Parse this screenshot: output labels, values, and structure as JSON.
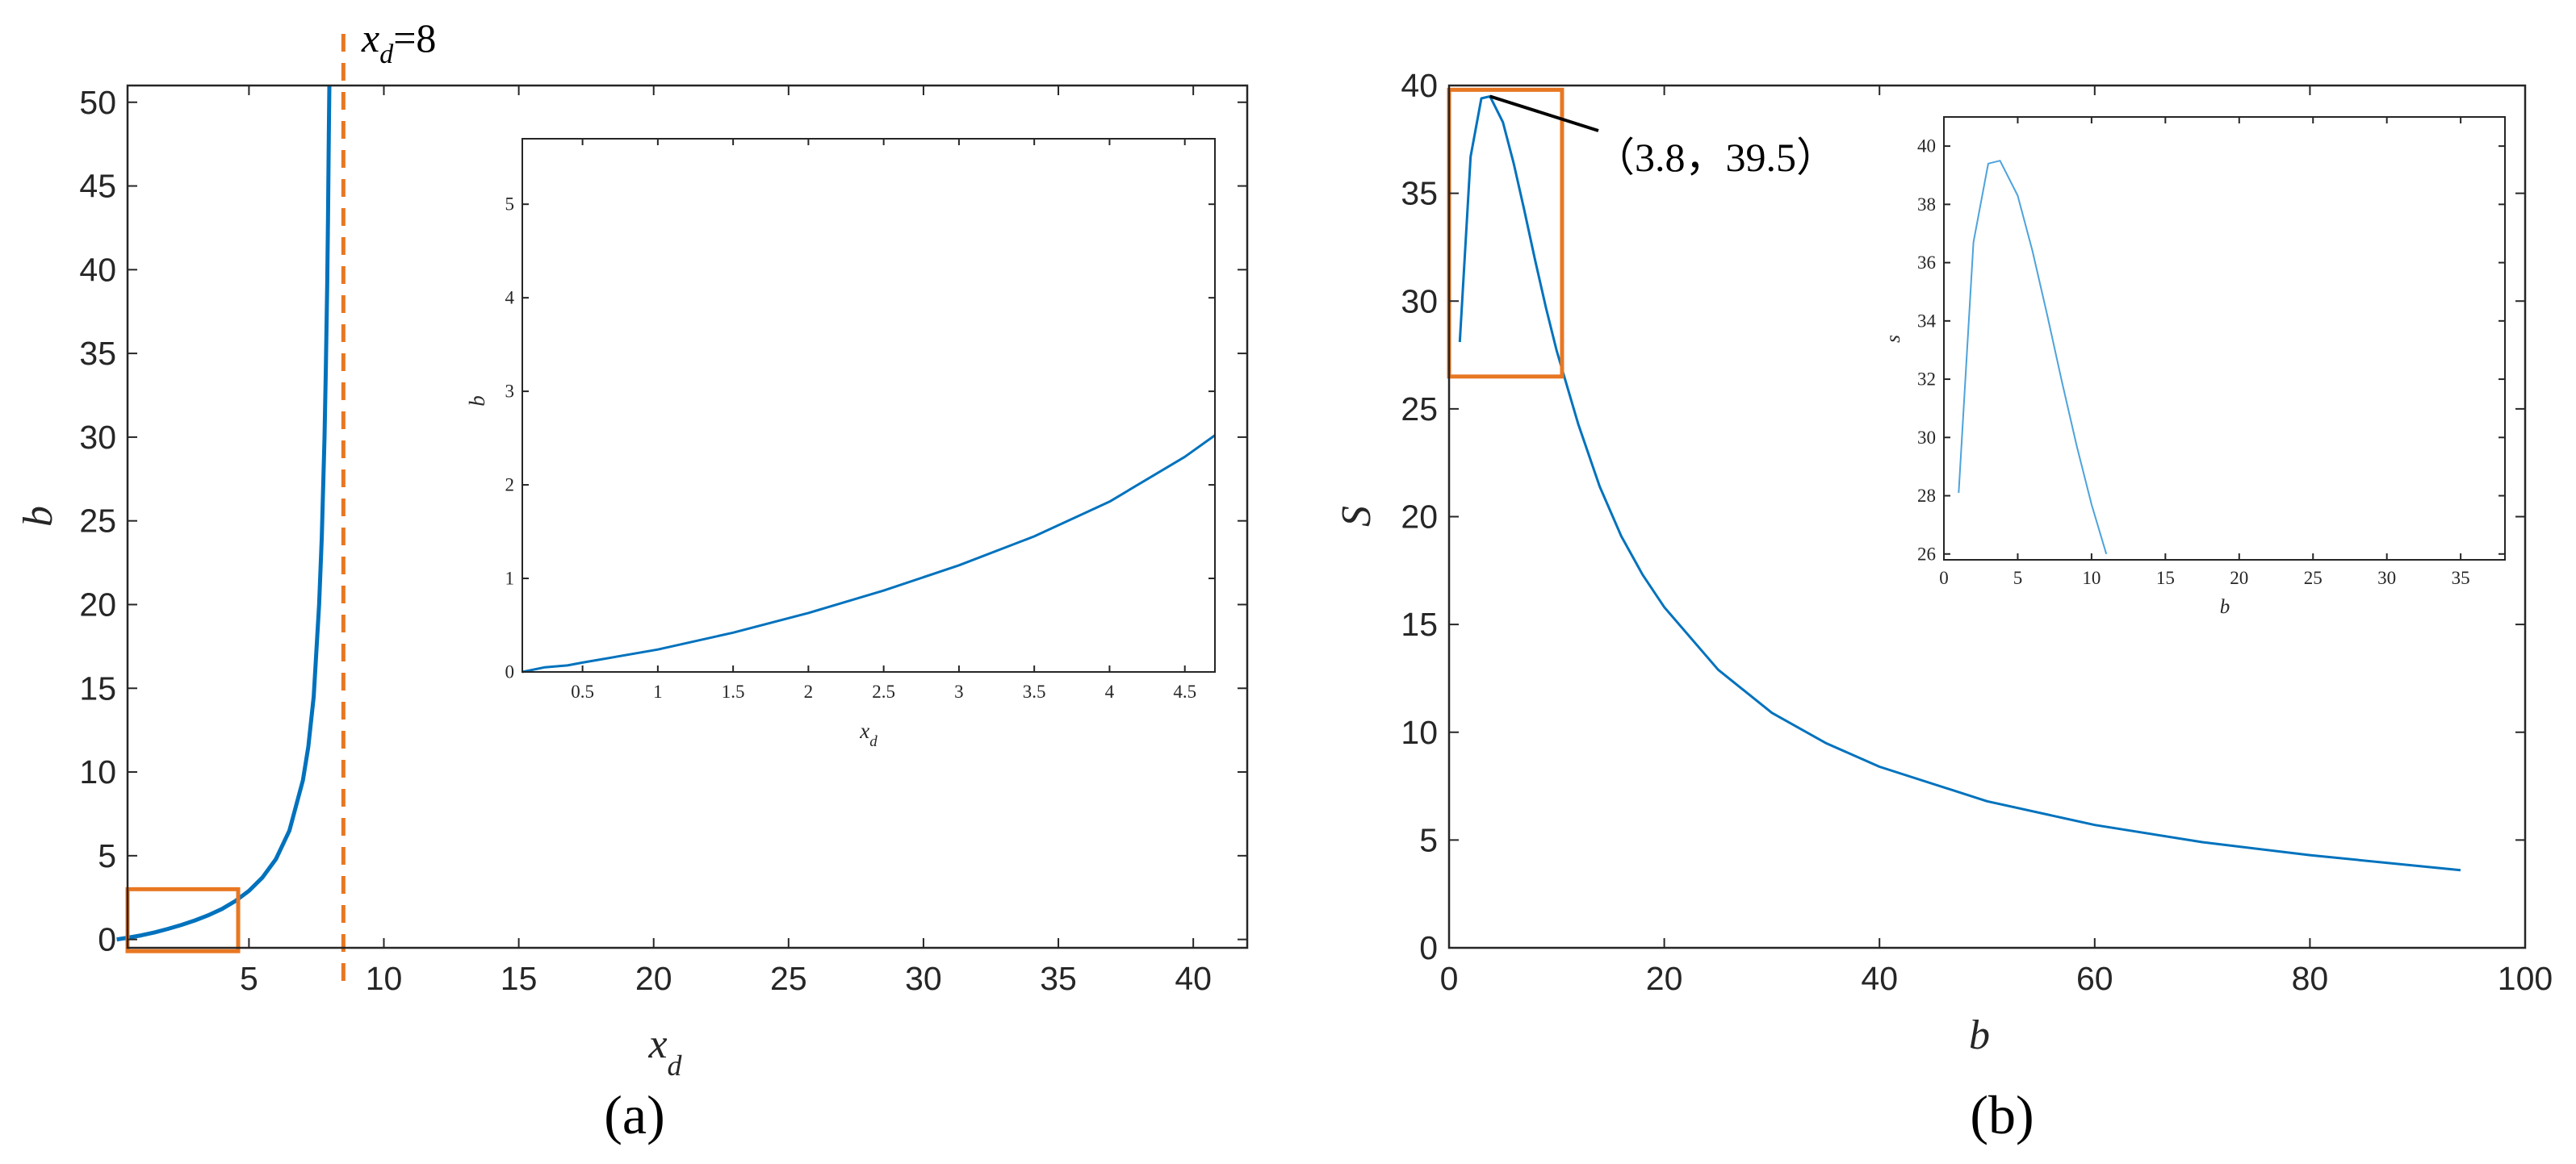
{
  "chart_data": [
    {
      "id": "a",
      "type": "line",
      "panel_label": "(a)",
      "xlabel": "x",
      "xlabel_sub": "d",
      "ylabel": "b",
      "xlim": [
        0.5,
        42
      ],
      "ylim": [
        -0.5,
        51
      ],
      "xticks": [
        5,
        10,
        15,
        20,
        25,
        30,
        35,
        40
      ],
      "yticks": [
        0,
        5,
        10,
        15,
        20,
        25,
        30,
        35,
        40,
        45,
        50
      ],
      "series": [
        {
          "color": "#0072BD",
          "x": [
            0.1,
            0.5,
            1,
            1.5,
            2,
            2.5,
            3,
            3.5,
            4,
            4.5,
            5,
            5.5,
            6,
            6.5,
            7,
            7.2,
            7.4,
            7.6,
            7.7,
            7.8,
            7.85,
            7.9,
            7.93,
            7.96,
            7.98
          ],
          "y": [
            0,
            0.1,
            0.24,
            0.42,
            0.63,
            0.87,
            1.14,
            1.45,
            1.82,
            2.3,
            2.9,
            3.7,
            4.8,
            6.5,
            9.5,
            11.5,
            14.5,
            20,
            24,
            30,
            34,
            39,
            43,
            48,
            51
          ]
        }
      ],
      "vline": {
        "x": 8.5,
        "label": "x",
        "label_sub": "d",
        "label_suffix": "=8",
        "color": "#E87722"
      },
      "zoom_box": {
        "x": [
          0.5,
          4.6
        ],
        "y": [
          -0.7,
          3.0
        ],
        "color": "#E87722"
      },
      "inset": {
        "xlabel": "x",
        "xlabel_sub": "d",
        "ylabel": "b",
        "xlim": [
          0.1,
          4.7
        ],
        "ylim": [
          0,
          5.7
        ],
        "xticks": [
          "0.5",
          "1",
          "1.5",
          "2",
          "2.5",
          "3",
          "3.5",
          "4",
          "4.5"
        ],
        "yticks": [
          "0",
          "1",
          "2",
          "3",
          "4",
          "5"
        ],
        "x": [
          0.1,
          0.25,
          0.4,
          0.5,
          1,
          1.5,
          2,
          2.5,
          3,
          3.5,
          4,
          4.5,
          4.7
        ],
        "y": [
          0,
          0.05,
          0.07,
          0.1,
          0.24,
          0.42,
          0.63,
          0.87,
          1.14,
          1.45,
          1.82,
          2.3,
          2.53
        ]
      }
    },
    {
      "id": "b",
      "type": "line",
      "panel_label": "(b)",
      "xlabel": "b",
      "ylabel": "S",
      "xlim": [
        0,
        100
      ],
      "ylim": [
        0,
        40
      ],
      "xticks": [
        0,
        20,
        40,
        60,
        80,
        100
      ],
      "yticks": [
        0,
        5,
        10,
        15,
        20,
        25,
        30,
        35,
        40
      ],
      "series": [
        {
          "color": "#0072BD",
          "x": [
            1,
            2,
            3,
            3.8,
            5,
            6,
            7,
            8,
            9,
            10,
            11,
            12,
            14,
            16,
            18,
            20,
            25,
            30,
            35,
            40,
            50,
            60,
            70,
            80,
            94
          ],
          "y": [
            28.1,
            36.7,
            39.4,
            39.5,
            38.3,
            36.4,
            34.2,
            31.9,
            29.7,
            27.7,
            26,
            24.3,
            21.4,
            19.1,
            17.3,
            15.8,
            12.9,
            10.9,
            9.5,
            8.4,
            6.8,
            5.7,
            4.9,
            4.3,
            3.6
          ]
        }
      ],
      "annotation": {
        "text": "（3.8，39.5）",
        "point": [
          3.8,
          39.5
        ]
      },
      "zoom_box": {
        "x": [
          0,
          10.5
        ],
        "y": [
          26.5,
          39.8
        ],
        "color": "#E87722"
      },
      "inset": {
        "xlabel": "b",
        "ylabel": "s",
        "xlim": [
          0,
          38
        ],
        "ylim": [
          25.8,
          41
        ],
        "xticks": [
          "0",
          "5",
          "10",
          "15",
          "20",
          "25",
          "30",
          "35"
        ],
        "yticks": [
          "26",
          "28",
          "30",
          "32",
          "34",
          "36",
          "38",
          "40"
        ],
        "x": [
          1,
          2,
          3,
          3.8,
          5,
          6,
          7,
          8,
          9,
          10,
          11
        ],
        "y": [
          28.1,
          36.7,
          39.4,
          39.5,
          38.3,
          36.4,
          34.2,
          31.9,
          29.7,
          27.7,
          26
        ]
      }
    }
  ]
}
